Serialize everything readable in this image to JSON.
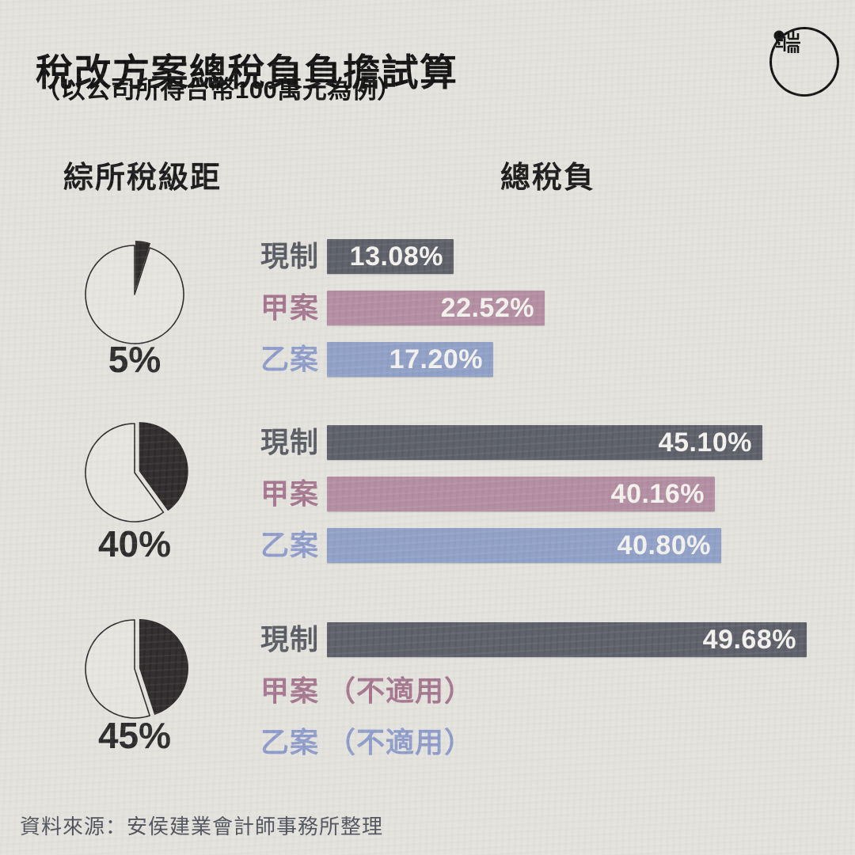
{
  "title": "稅改方案總稅負負擔試算",
  "subtitle": "（以公司所得台幣100萬元為例）",
  "columns": {
    "left": "綜所稅級距",
    "right": "總稅負"
  },
  "source": "資料來源：安侯建業會計師事務所整理",
  "icons": {
    "brand": "initium-media-logo"
  },
  "colors": {
    "background": "#e3e2dd",
    "heading_text": "#141414",
    "pie_dark": "#2e2a2b",
    "pie_light": "#e7e5e0",
    "pie_outline": "#2c2c2c",
    "pie_label_text": "#2b2b2b",
    "bar_value_text": "#f4f2ee",
    "source_text": "#51535c",
    "current_bar": "#5c5f68",
    "current_label": "#5a5c63",
    "plan_a_bar": "#b38da1",
    "plan_a_label": "#a5768f",
    "plan_b_bar": "#90a0c6",
    "plan_b_label": "#8e9cca"
  },
  "chart_data": {
    "type": "bar",
    "orientation": "horizontal",
    "x_unit": "percent total tax burden",
    "x_range": [
      0,
      50
    ],
    "series_legend": [
      "現制",
      "甲案",
      "乙案"
    ],
    "groups": [
      {
        "bracket": "5%",
        "bracket_value": 5,
        "rows": [
          {
            "label": "現制",
            "series": "current",
            "value": 13.08,
            "display": "13.08%"
          },
          {
            "label": "甲案",
            "series": "plan_a",
            "value": 22.52,
            "display": "22.52%"
          },
          {
            "label": "乙案",
            "series": "plan_b",
            "value": 17.2,
            "display": "17.20%"
          }
        ]
      },
      {
        "bracket": "40%",
        "bracket_value": 40,
        "rows": [
          {
            "label": "現制",
            "series": "current",
            "value": 45.1,
            "display": "45.10%"
          },
          {
            "label": "甲案",
            "series": "plan_a",
            "value": 40.16,
            "display": "40.16%"
          },
          {
            "label": "乙案",
            "series": "plan_b",
            "value": 40.8,
            "display": "40.80%"
          }
        ]
      },
      {
        "bracket": "45%",
        "bracket_value": 45,
        "rows": [
          {
            "label": "現制",
            "series": "current",
            "value": 49.68,
            "display": "49.68%"
          },
          {
            "label": "甲案",
            "series": "plan_a",
            "value": null,
            "note": "（不適用）"
          },
          {
            "label": "乙案",
            "series": "plan_b",
            "value": null,
            "note": "（不適用）"
          }
        ]
      }
    ]
  }
}
